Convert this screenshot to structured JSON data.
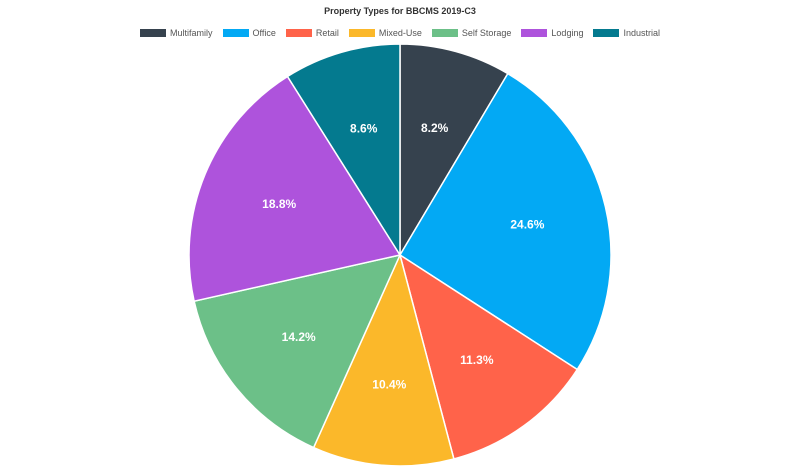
{
  "chart_data": {
    "type": "pie",
    "title": "Property Types for BBCMS 2019-C3",
    "legend_position": "top",
    "slices": [
      {
        "name": "Multifamily",
        "value": 8.2,
        "label": "8.2%",
        "color": "#36424e"
      },
      {
        "name": "Office",
        "value": 24.6,
        "label": "24.6%",
        "color": "#03a9f4"
      },
      {
        "name": "Retail",
        "value": 11.3,
        "label": "11.3%",
        "color": "#ff634a"
      },
      {
        "name": "Mixed-Use",
        "value": 10.4,
        "label": "10.4%",
        "color": "#fbb82a"
      },
      {
        "name": "Self Storage",
        "value": 14.2,
        "label": "14.2%",
        "color": "#6cc088"
      },
      {
        "name": "Lodging",
        "value": 18.8,
        "label": "18.8%",
        "color": "#ae53dc"
      },
      {
        "name": "Industrial",
        "value": 8.6,
        "label": "8.6%",
        "color": "#047a8f"
      }
    ]
  }
}
